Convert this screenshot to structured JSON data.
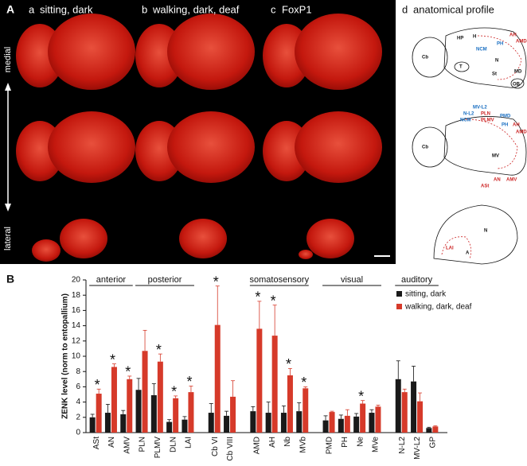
{
  "panel_a": {
    "label": "A",
    "columns": [
      {
        "letter": "a",
        "title": "sitting, dark"
      },
      {
        "letter": "b",
        "title": "walking, dark, deaf"
      },
      {
        "letter": "c",
        "title": "FoxP1"
      },
      {
        "letter": "d",
        "title": "anatomical profile"
      }
    ],
    "axis_top": "medial",
    "axis_bottom": "lateral"
  },
  "panel_d_labels": {
    "top": [
      "HP",
      "H",
      "NCM",
      "PH",
      "AH",
      "AMD",
      "MD",
      "N",
      "St",
      "T",
      "Cb",
      "OB"
    ],
    "middle": [
      "MV-L2",
      "N-L2",
      "NCM",
      "PLN",
      "PLMV",
      "PMD",
      "PH",
      "AH",
      "AMD",
      "Cb",
      "MV",
      "AN",
      "AMV",
      "ASt"
    ],
    "bottom": [
      "N",
      "A",
      "LAI"
    ]
  },
  "chart_data": {
    "type": "bar",
    "panel_label": "B",
    "ylabel": "ZENK level (norm to entopallium)",
    "categories": [
      "ASt",
      "AN",
      "AMV",
      "PLN",
      "PLMV",
      "DLN",
      "LAI",
      null,
      "Cb VI",
      "Cb VIII",
      null,
      "AMD",
      "AH",
      "Nb",
      "MVb",
      null,
      "PMD",
      "PH",
      "Ne",
      "MVe",
      null,
      "N-L2",
      "MV-L2",
      "GP"
    ],
    "group_labels": [
      "anterior",
      "posterior",
      "somatosensory",
      "visual",
      "auditory"
    ],
    "series": [
      {
        "name": "sitting, dark",
        "color": "#1a1a1a",
        "values": [
          2.0,
          2.6,
          2.4,
          5.6,
          4.9,
          1.4,
          1.7,
          null,
          2.6,
          2.2,
          null,
          2.8,
          2.6,
          2.6,
          2.8,
          null,
          1.6,
          1.8,
          2.1,
          2.6,
          null,
          7.0,
          6.7,
          0.6
        ],
        "error": [
          0.4,
          1.1,
          0.5,
          1.5,
          1.5,
          0.3,
          0.4,
          null,
          1.2,
          0.6,
          null,
          0.6,
          1.4,
          0.9,
          1.1,
          null,
          0.6,
          0.5,
          0.4,
          0.4,
          null,
          2.4,
          2.0,
          0.1
        ]
      },
      {
        "name": "walking, dark, deaf",
        "color": "#d63a2a",
        "values": [
          5.1,
          8.6,
          7.0,
          10.7,
          9.3,
          4.5,
          5.3,
          null,
          14.1,
          4.7,
          null,
          13.6,
          12.7,
          7.5,
          5.8,
          null,
          2.7,
          2.2,
          3.8,
          3.4,
          null,
          5.3,
          4.1,
          0.8
        ],
        "error": [
          0.6,
          0.4,
          0.4,
          2.7,
          1.0,
          0.3,
          0.8,
          null,
          5.1,
          2.1,
          null,
          3.6,
          4.0,
          0.9,
          0.2,
          null,
          0.1,
          0.8,
          0.4,
          0.2,
          null,
          0.4,
          1.1,
          0.1
        ],
        "annotations": [
          "*",
          "*",
          "*",
          null,
          "*",
          "*",
          "*",
          null,
          "*",
          null,
          null,
          "*",
          "*",
          "*",
          "*",
          null,
          null,
          null,
          "*",
          null,
          null,
          null,
          null,
          null
        ]
      }
    ],
    "ylim": [
      0,
      20
    ],
    "yticks": [
      0,
      2,
      4,
      6,
      8,
      10,
      12,
      14,
      16,
      18,
      20
    ],
    "legend": "upper right"
  }
}
